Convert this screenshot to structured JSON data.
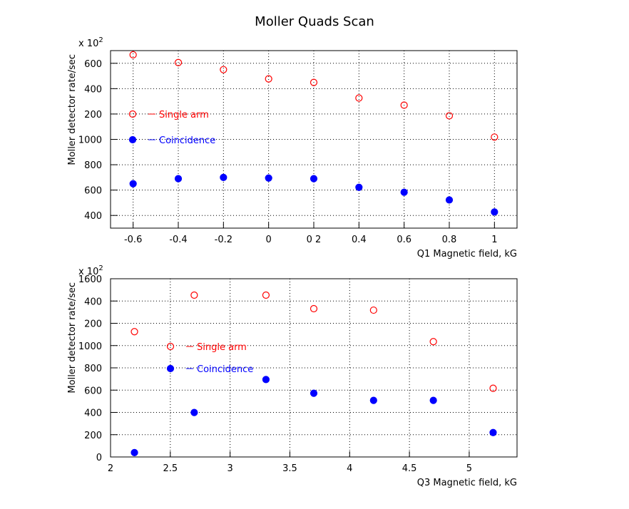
{
  "title": "Moller Quads Scan",
  "chart_data": [
    {
      "type": "scatter",
      "xlabel": "Q1 Magnetic field, kG",
      "ylabel": "Moller detector rate/sec",
      "y_scale_label": "x 10",
      "y_scale_power": "2",
      "grid": true,
      "xlim": [
        -0.7,
        1.1
      ],
      "xticks": [
        -0.6,
        -0.4,
        -0.2,
        0,
        {
          "value": 0.2,
          "label": "0 2"
        },
        0.4,
        0.6,
        0.8,
        1
      ],
      "ylim": [
        300,
        1700
      ],
      "yticks": [
        400,
        600,
        800,
        1000,
        {
          "value": 1200,
          "label": "200"
        },
        {
          "value": 1400,
          "label": "400"
        },
        {
          "value": 1600,
          "label": "600"
        }
      ],
      "x": [
        -0.6,
        -0.4,
        -0.2,
        0,
        0.2,
        0.4,
        0.6,
        0.8,
        1
      ],
      "series": [
        {
          "name": "Single arm",
          "color": "#ff0000",
          "marker": "open",
          "values": [
            1667,
            1606,
            1550,
            1477,
            1449,
            1326,
            1270,
            1186,
            1018
          ]
        },
        {
          "name": "Coincidence",
          "color": "#0000ff",
          "marker": "filled",
          "values": [
            650,
            690,
            700,
            695,
            690,
            622,
            583,
            522,
            427
          ]
        }
      ]
    },
    {
      "type": "scatter",
      "xlabel": "Q3 Magnetic field, kG",
      "ylabel": "Moller detector rate/sec",
      "y_scale_label": "x 10",
      "y_scale_power": "2",
      "grid": true,
      "xlim": [
        2,
        5.4
      ],
      "xticks": [
        2,
        2.5,
        3,
        3.5,
        4,
        4.5,
        5
      ],
      "ylim": [
        0,
        1600
      ],
      "yticks": [
        0,
        200,
        400,
        600,
        800,
        1000,
        {
          "value": 1200,
          "label": "200"
        },
        {
          "value": 1400,
          "label": "400"
        },
        1600
      ],
      "x": [
        2.2,
        2.7,
        3.3,
        3.7,
        4.2,
        4.7,
        5.2
      ],
      "series": [
        {
          "name": "Single arm",
          "color": "#ff0000",
          "marker": "open",
          "values": [
            1125,
            1453,
            1453,
            1331,
            1318,
            1035,
            617
          ]
        },
        {
          "name": "Coincidence",
          "color": "#0000ff",
          "marker": "filled",
          "values": [
            39,
            399,
            695,
            572,
            508,
            508,
            219
          ]
        }
      ]
    }
  ]
}
